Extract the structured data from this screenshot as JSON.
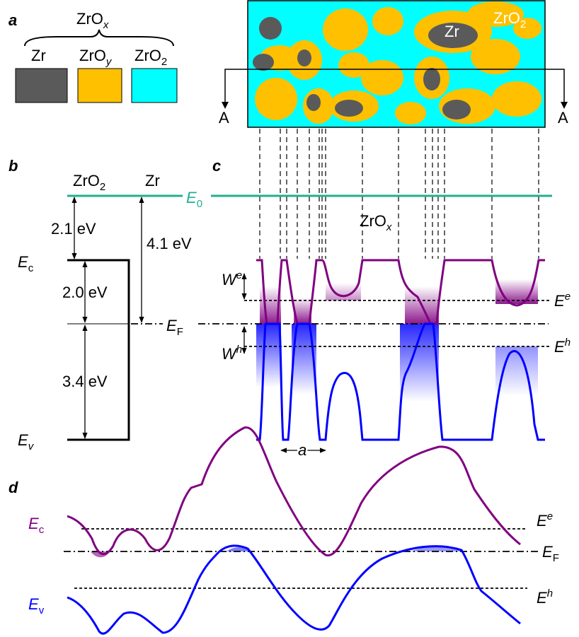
{
  "panel_a": {
    "label": "a",
    "group_label": {
      "main": "ZrO",
      "sub": "x"
    },
    "legend": [
      {
        "main": "Zr"
      },
      {
        "main": "ZrO",
        "sub": "y"
      },
      {
        "main": "ZrO",
        "sub": "2"
      }
    ],
    "image_labels": [
      {
        "main": "Zr"
      },
      {
        "main": "ZrO",
        "sub": "2"
      }
    ],
    "section_ends": [
      "A",
      "A"
    ]
  },
  "panel_b": {
    "label": "b",
    "materials": [
      {
        "main": "ZrO",
        "sub": "2"
      },
      {
        "main": "Zr"
      }
    ],
    "vacuum": {
      "main": "E",
      "sub": "0"
    },
    "energies": [
      "2.1 eV",
      "4.1 eV",
      "2.0 eV",
      "3.4 eV"
    ],
    "levels": [
      {
        "main": "E",
        "sub": "c"
      },
      {
        "main": "E",
        "sub": "F"
      },
      {
        "main": "E",
        "sub": "v"
      }
    ]
  },
  "panel_c": {
    "label": "c",
    "region": {
      "main": "ZrO",
      "sub": "x"
    },
    "depths": [
      {
        "main": "W",
        "sup": "e"
      },
      {
        "main": "W",
        "sup": "h"
      }
    ],
    "levels": [
      {
        "main": "E",
        "sup": "e"
      },
      {
        "main": "E",
        "sup": "h"
      }
    ],
    "spacing": "a"
  },
  "panel_d": {
    "label": "d",
    "levels": [
      {
        "main": "E",
        "sub": "c"
      },
      {
        "main": "E",
        "sup": "e"
      },
      {
        "main": "E",
        "sub": "F"
      },
      {
        "main": "E",
        "sup": "h"
      },
      {
        "main": "E",
        "sub": "v"
      }
    ]
  }
}
